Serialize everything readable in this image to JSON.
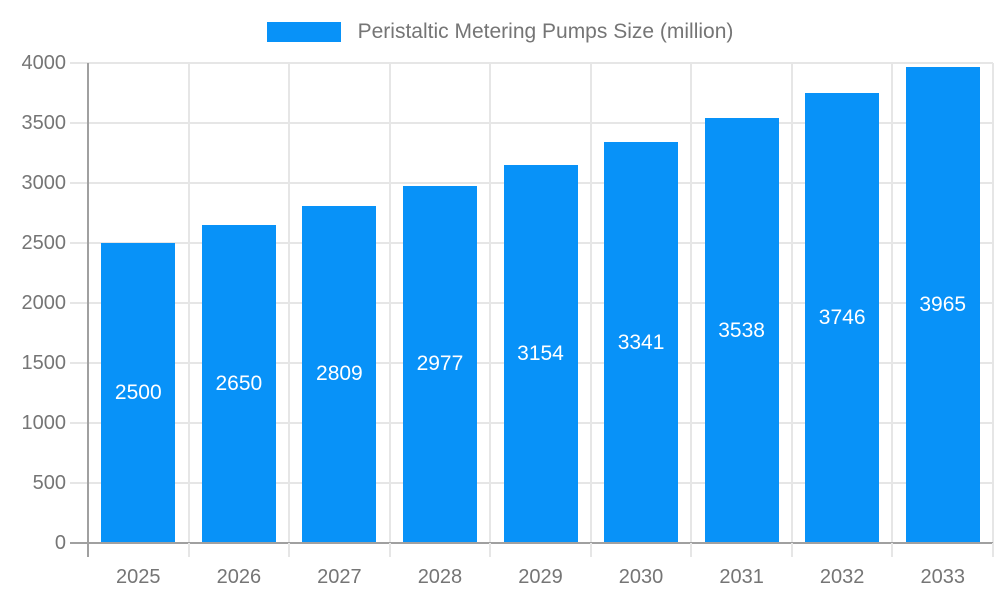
{
  "chart_data": {
    "type": "bar",
    "title": "",
    "legend": "Peristaltic Metering Pumps Size (million)",
    "legend_position": "top-center",
    "categories": [
      "2025",
      "2026",
      "2027",
      "2028",
      "2029",
      "2030",
      "2031",
      "2032",
      "2033"
    ],
    "series": [
      {
        "name": "Peristaltic Metering Pumps Size (million)",
        "values": [
          2500,
          2650,
          2809,
          2977,
          3154,
          3341,
          3538,
          3746,
          3965
        ]
      }
    ],
    "xlabel": "",
    "ylabel": "",
    "ylim": [
      0,
      4000
    ],
    "yticks": [
      0,
      500,
      1000,
      1500,
      2000,
      2500,
      3000,
      3500,
      4000
    ],
    "grid": true,
    "value_labels_inside_bars": true,
    "colors": {
      "bar": "#0892f8",
      "grid_line": "#e6e6e6",
      "axis_line": "#a0a0a0",
      "tick_text": "#757575",
      "legend_text": "#757575",
      "value_label_text": "#ffffff",
      "background": "#ffffff"
    }
  }
}
